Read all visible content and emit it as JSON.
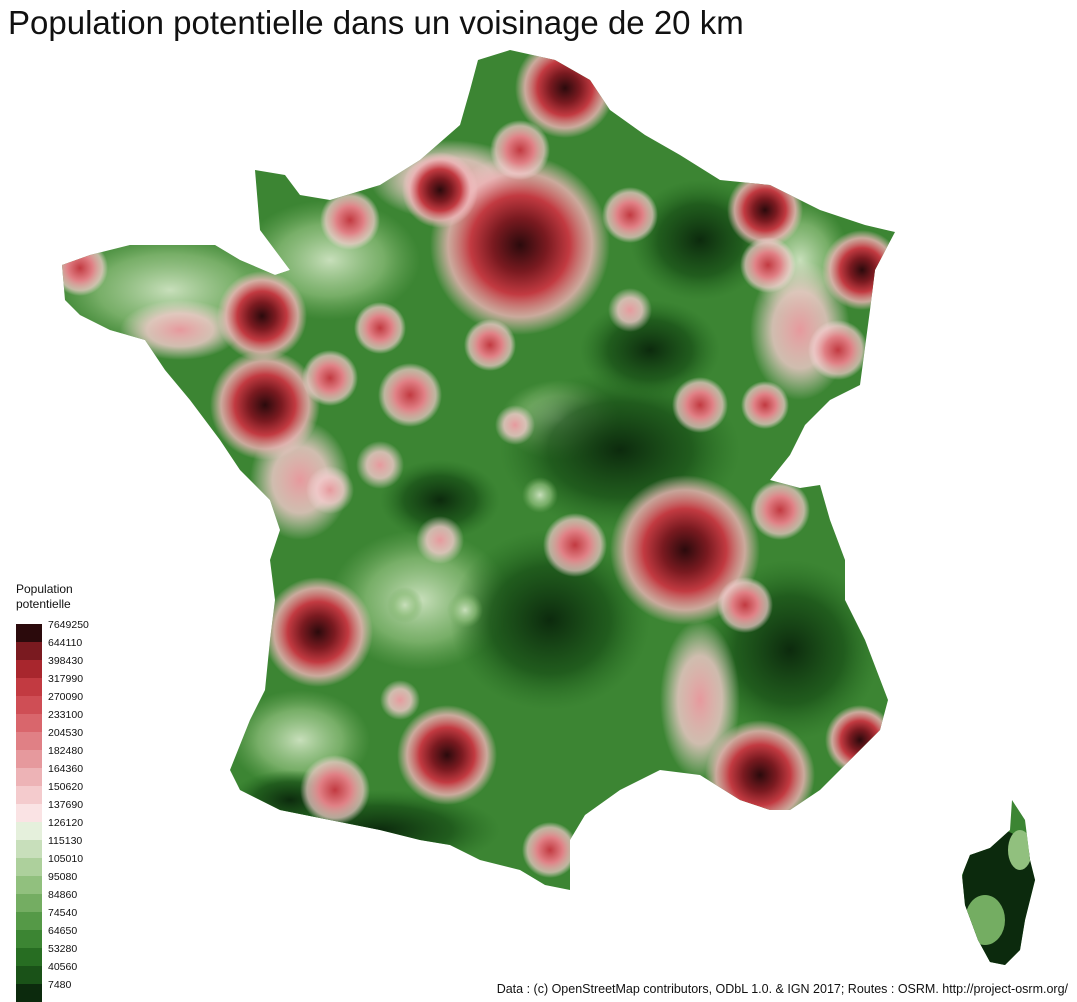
{
  "title": "Population potentielle dans un voisinage de 20 km",
  "legend": {
    "title_line1": "Population",
    "title_line2": "potentielle",
    "classes": [
      {
        "label": "7649250",
        "color": "#2b0a0c"
      },
      {
        "label": "644110",
        "color": "#7a1a20"
      },
      {
        "label": "398430",
        "color": "#a8262d"
      },
      {
        "label": "317990",
        "color": "#c23a41"
      },
      {
        "label": "270090",
        "color": "#cf4e55"
      },
      {
        "label": "233100",
        "color": "#d9666c"
      },
      {
        "label": "204530",
        "color": "#e08085"
      },
      {
        "label": "182480",
        "color": "#e6999d"
      },
      {
        "label": "164360",
        "color": "#edb3b6"
      },
      {
        "label": "150620",
        "color": "#f4cbcd"
      },
      {
        "label": "137690",
        "color": "#fae3e4"
      },
      {
        "label": "126120",
        "color": "#e5f0dc"
      },
      {
        "label": "115130",
        "color": "#c8dfbb"
      },
      {
        "label": "105010",
        "color": "#add09c"
      },
      {
        "label": "95080",
        "color": "#91c07e"
      },
      {
        "label": "84860",
        "color": "#74ad62"
      },
      {
        "label": "74540",
        "color": "#559947"
      },
      {
        "label": "64650",
        "color": "#3c8533"
      },
      {
        "label": "53280",
        "color": "#276d22"
      },
      {
        "label": "40560",
        "color": "#1a5218"
      },
      {
        "label": "7480",
        "color": "#0c2a0d"
      }
    ]
  },
  "colors": {
    "low": "#0c2a0d",
    "mid": "#f4f2ee",
    "high": "#2b0a0c"
  },
  "credit": "Data : (c) OpenStreetMap contributors, ODbL 1.0. & IGN 2017; Routes : OSRM. http://project-osrm.org/"
}
